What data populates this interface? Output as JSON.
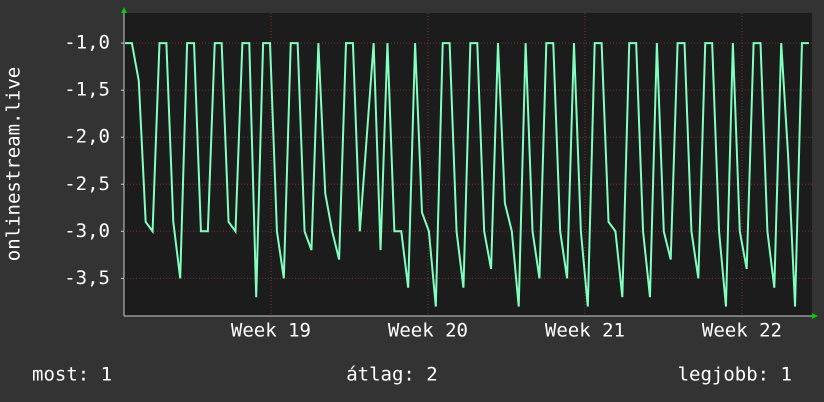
{
  "chart_data": {
    "type": "line",
    "y_label": "onlinestream.live",
    "xlim": [
      18.064,
      22.446
    ],
    "ylim": [
      -3.9,
      -0.68
    ],
    "xticks": [
      {
        "value": 19,
        "label": "Week 19"
      },
      {
        "value": 20,
        "label": "Week 20"
      },
      {
        "value": 21,
        "label": "Week 21"
      },
      {
        "value": 22,
        "label": "Week 22"
      }
    ],
    "yticks": [
      {
        "value": -1,
        "label": "-1,0"
      },
      {
        "value": -1.5,
        "label": "-1,5"
      },
      {
        "value": -2,
        "label": "-2,0"
      },
      {
        "value": -2.5,
        "label": "-2,5"
      },
      {
        "value": -3,
        "label": "-3,0"
      },
      {
        "value": -3.5,
        "label": "-3,5"
      }
    ],
    "grid": true,
    "series": [
      {
        "color": "#80ffbf",
        "x": [
          18.07,
          18.114,
          18.158,
          18.202,
          18.246,
          18.29,
          18.334,
          18.378,
          18.422,
          18.466,
          18.51,
          18.554,
          18.598,
          18.642,
          18.686,
          18.73,
          18.774,
          18.818,
          18.862,
          18.906,
          18.95,
          18.994,
          19.038,
          19.082,
          19.126,
          19.17,
          19.214,
          19.258,
          19.302,
          19.346,
          19.39,
          19.434,
          19.478,
          19.522,
          19.566,
          19.61,
          19.654,
          19.698,
          19.742,
          19.786,
          19.83,
          19.874,
          19.918,
          19.962,
          20.006,
          20.05,
          20.094,
          20.138,
          20.182,
          20.226,
          20.27,
          20.314,
          20.358,
          20.402,
          20.446,
          20.49,
          20.534,
          20.578,
          20.622,
          20.666,
          20.71,
          20.754,
          20.798,
          20.842,
          20.886,
          20.93,
          20.974,
          21.018,
          21.062,
          21.106,
          21.15,
          21.194,
          21.238,
          21.282,
          21.326,
          21.37,
          21.414,
          21.458,
          21.502,
          21.546,
          21.59,
          21.634,
          21.678,
          21.722,
          21.766,
          21.81,
          21.854,
          21.898,
          21.942,
          21.986,
          22.03,
          22.074,
          22.118,
          22.162,
          22.206,
          22.25,
          22.294,
          22.338,
          22.382,
          22.426
        ],
        "values": [
          -1,
          -1,
          -1.4,
          -2.9,
          -3,
          -1,
          -1,
          -2.9,
          -3.5,
          -1,
          -1,
          -3,
          -3,
          -1,
          -1,
          -2.9,
          -3,
          -1,
          -1,
          -3.7,
          -1,
          -1,
          -3,
          -3.5,
          -1,
          -1,
          -3,
          -3.2,
          -1,
          -2.6,
          -3,
          -3.3,
          -1,
          -1,
          -3,
          -2,
          -1,
          -3.2,
          -1,
          -3,
          -3,
          -3.6,
          -1,
          -2.8,
          -3,
          -3.8,
          -1,
          -1,
          -3,
          -3.6,
          -1,
          -1,
          -3,
          -3.4,
          -1,
          -2.7,
          -3,
          -3.8,
          -1,
          -3,
          -3.5,
          -1,
          -1,
          -3,
          -3.5,
          -1,
          -3,
          -3.8,
          -1,
          -1,
          -2.9,
          -3,
          -3.7,
          -1,
          -1,
          -3,
          -3.7,
          -1,
          -3,
          -3.3,
          -1,
          -1,
          -3,
          -3.5,
          -1,
          -1,
          -3,
          -3.8,
          -1,
          -3,
          -3.4,
          -1,
          -1,
          -3,
          -3.6,
          -1,
          -2.2,
          -3.8,
          -1,
          -1
        ]
      }
    ],
    "footer": [
      "most: 1",
      "átlag: 2",
      "legjobb: 1"
    ]
  }
}
